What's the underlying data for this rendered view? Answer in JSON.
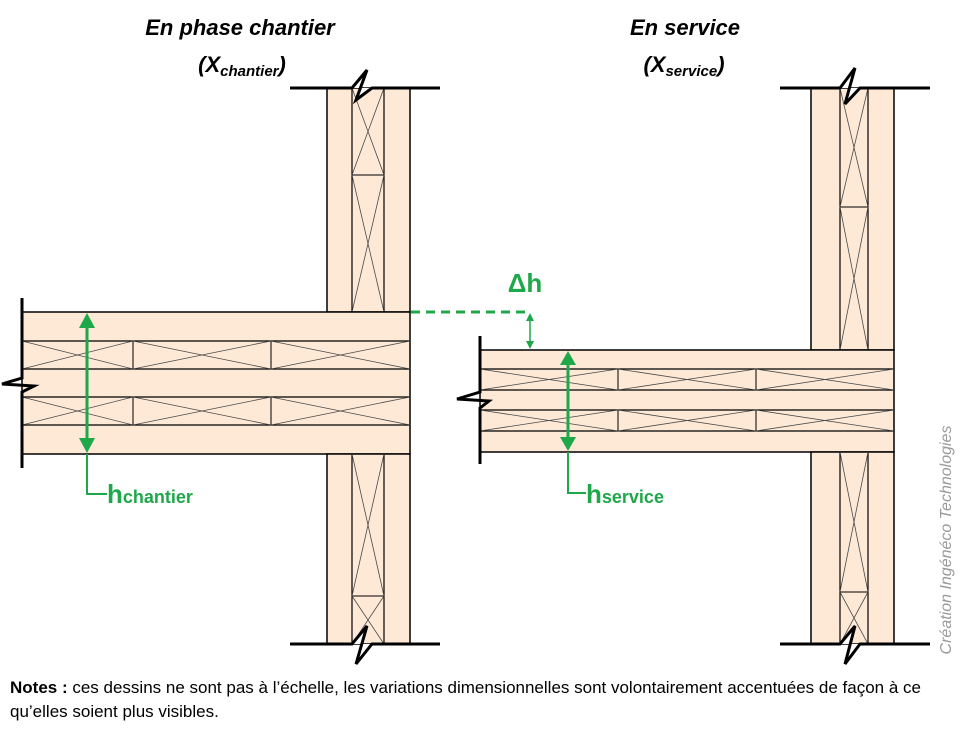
{
  "left_title": {
    "line1": "En phase chantier",
    "line2_open": "(X",
    "line2_sub": "chantier",
    "line2_close": ")"
  },
  "right_title": {
    "line1": "En service",
    "line2_open": "(X",
    "line2_sub": "service",
    "line2_close": ")"
  },
  "labels": {
    "delta_h": "Δh",
    "h_main": "h",
    "h_chantier_sub": "chantier",
    "h_service_sub": "service"
  },
  "notes": {
    "label": "Notes :",
    "text": " ces dessins ne sont pas à l’échelle, les variations dimensionnelles sont volontairement accentuées de façon à ce qu’elles soient plus visibles."
  },
  "credit": "Création Ingénéco Technologies",
  "colors": {
    "wood_fill": "#fde9d6",
    "outline": "#000000",
    "hatch": "#4a4a4a",
    "dimension": "#1fa84a",
    "credit": "#9a9a9a"
  }
}
